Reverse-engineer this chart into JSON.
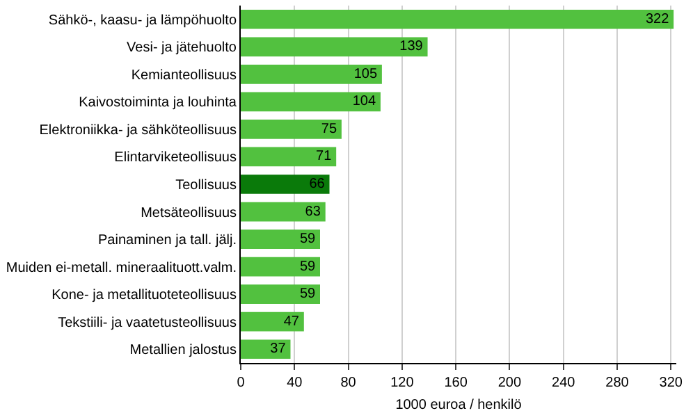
{
  "chart_data": {
    "type": "bar",
    "orientation": "horizontal",
    "xlabel": "1000 euroa / henkilö",
    "categories": [
      "Sähkö-, kaasu- ja lämpöhuolto",
      "Vesi- ja jätehuolto",
      "Kemianteollisuus",
      "Kaivostoiminta ja louhinta",
      "Elektroniikka- ja sähköteollisuus",
      "Elintarviketeollisuus",
      "Teollisuus",
      "Metsäteollisuus",
      "Painaminen ja tall. jälj.",
      "Muiden ei-metall. mineraalituott.valm.",
      "Kone- ja metallituoteteollisuus",
      "Tekstiili- ja vaatetusteollisuus",
      "Metallien jalostus"
    ],
    "values": [
      322,
      139,
      105,
      104,
      75,
      71,
      66,
      63,
      59,
      59,
      59,
      47,
      37
    ],
    "colors": [
      "#52c13f",
      "#52c13f",
      "#52c13f",
      "#52c13f",
      "#52c13f",
      "#52c13f",
      "#0a7a0a",
      "#52c13f",
      "#52c13f",
      "#52c13f",
      "#52c13f",
      "#52c13f",
      "#52c13f"
    ],
    "xlim": [
      0,
      324
    ],
    "xticks": [
      0,
      40,
      80,
      120,
      160,
      200,
      240,
      280,
      320
    ],
    "grid": "x",
    "data_labels": true
  }
}
